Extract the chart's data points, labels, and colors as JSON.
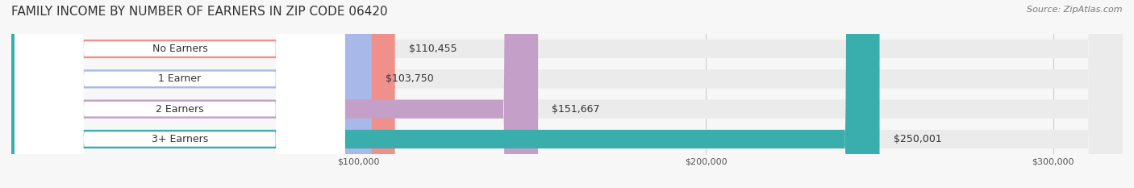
{
  "title": "FAMILY INCOME BY NUMBER OF EARNERS IN ZIP CODE 06420",
  "source": "Source: ZipAtlas.com",
  "categories": [
    "No Earners",
    "1 Earner",
    "2 Earners",
    "3+ Earners"
  ],
  "values": [
    110455,
    103750,
    151667,
    250001
  ],
  "bar_colors": [
    "#F0908A",
    "#A8B8E8",
    "#C4A0C8",
    "#3AADAD"
  ],
  "bar_bg_color": "#EBEBEB",
  "label_colors": [
    "#F0908A",
    "#A8B8E8",
    "#C4A0C8",
    "#3AADAD"
  ],
  "value_labels": [
    "$110,455",
    "$103,750",
    "$151,667",
    "$250,001"
  ],
  "xlim": [
    0,
    320000
  ],
  "xticks": [
    100000,
    200000,
    300000
  ],
  "xtick_labels": [
    "$100,000",
    "$200,000",
    "$300,000"
  ],
  "background_color": "#F7F7F7",
  "title_fontsize": 11,
  "source_fontsize": 8,
  "bar_label_fontsize": 9,
  "value_fontsize": 9,
  "tick_fontsize": 8,
  "bar_height": 0.62,
  "bar_gap": 0.05
}
